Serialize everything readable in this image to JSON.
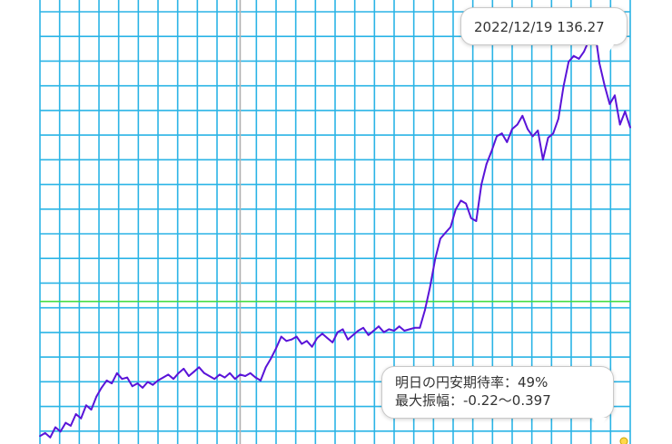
{
  "chart_data": {
    "type": "line",
    "title": "",
    "xlabel": "",
    "ylabel": "",
    "grid": true,
    "ylim": [
      110,
      140
    ],
    "series": [
      {
        "color": "#5a14d8",
        "values": [
          110.3,
          110.5,
          110.2,
          110.9,
          110.6,
          111.2,
          111.0,
          111.8,
          111.5,
          112.4,
          112.1,
          113.0,
          113.6,
          114.1,
          113.9,
          114.6,
          114.2,
          114.3,
          113.7,
          113.9,
          113.6,
          114.0,
          113.8,
          114.1,
          114.3,
          114.5,
          114.2,
          114.6,
          114.9,
          114.4,
          114.7,
          115.0,
          114.6,
          114.4,
          114.2,
          114.5,
          114.3,
          114.6,
          114.2,
          114.5,
          114.4,
          114.6,
          114.3,
          114.1,
          115.0,
          115.6,
          116.3,
          117.1,
          116.8,
          116.9,
          117.1,
          116.6,
          116.8,
          116.4,
          117.0,
          117.3,
          117.0,
          116.7,
          117.4,
          117.6,
          116.9,
          117.2,
          117.5,
          117.7,
          117.2,
          117.5,
          117.8,
          117.4,
          117.6,
          117.5,
          117.8,
          117.5,
          117.6,
          117.7,
          117.7,
          118.9,
          120.5,
          122.4,
          123.8,
          124.2,
          124.6,
          125.8,
          126.4,
          126.2,
          125.2,
          125.0,
          127.5,
          128.9,
          129.8,
          130.8,
          131.0,
          130.4,
          131.3,
          131.6,
          132.2,
          131.3,
          130.8,
          131.2,
          129.2,
          130.7,
          131.0,
          132.0,
          134.2,
          135.9,
          136.3,
          136.1,
          136.6,
          137.4,
          138.3,
          135.8,
          134.3,
          133.0,
          133.6,
          131.6,
          132.5,
          131.4
        ]
      }
    ],
    "reference_lines": [
      {
        "value": 119.5,
        "color": "#44dd44"
      }
    ],
    "gridline_color": "#2ab4e6",
    "highlight_index": 39,
    "highlight_color": "#b0b0b0",
    "tooltip": "2022/12/19 136.27",
    "info_lines": [
      "明日の円安期待率：49%",
      "最大振幅：-0.22～0.397"
    ]
  }
}
